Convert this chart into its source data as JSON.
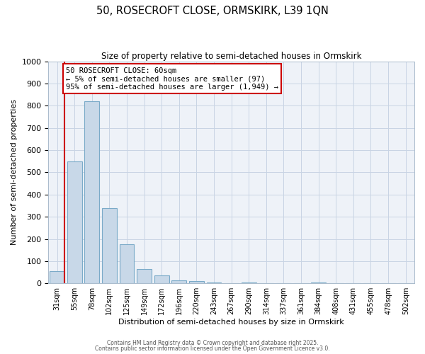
{
  "title": "50, ROSECROFT CLOSE, ORMSKIRK, L39 1QN",
  "subtitle": "Size of property relative to semi-detached houses in Ormskirk",
  "xlabel": "Distribution of semi-detached houses by size in Ormskirk",
  "ylabel": "Number of semi-detached properties",
  "bar_labels": [
    "31sqm",
    "55sqm",
    "78sqm",
    "102sqm",
    "125sqm",
    "149sqm",
    "172sqm",
    "196sqm",
    "220sqm",
    "243sqm",
    "267sqm",
    "290sqm",
    "314sqm",
    "337sqm",
    "361sqm",
    "384sqm",
    "408sqm",
    "431sqm",
    "455sqm",
    "478sqm",
    "502sqm"
  ],
  "bar_values": [
    55,
    550,
    820,
    340,
    175,
    65,
    35,
    15,
    10,
    5,
    0,
    5,
    0,
    0,
    0,
    5,
    0,
    0,
    0,
    0,
    0
  ],
  "bar_color": "#c8d8e8",
  "bar_edgecolor": "#7aaac8",
  "ylim": [
    0,
    1000
  ],
  "yticks": [
    0,
    100,
    200,
    300,
    400,
    500,
    600,
    700,
    800,
    900,
    1000
  ],
  "vline_color": "#cc0000",
  "annotation_title": "50 ROSECROFT CLOSE: 60sqm",
  "annotation_line1": "← 5% of semi-detached houses are smaller (97)",
  "annotation_line2": "95% of semi-detached houses are larger (1,949) →",
  "annotation_box_color": "#cc0000",
  "footer1": "Contains HM Land Registry data © Crown copyright and database right 2025.",
  "footer2": "Contains public sector information licensed under the Open Government Licence v3.0.",
  "bg_color": "#eef2f8",
  "grid_color": "#c8d4e4"
}
